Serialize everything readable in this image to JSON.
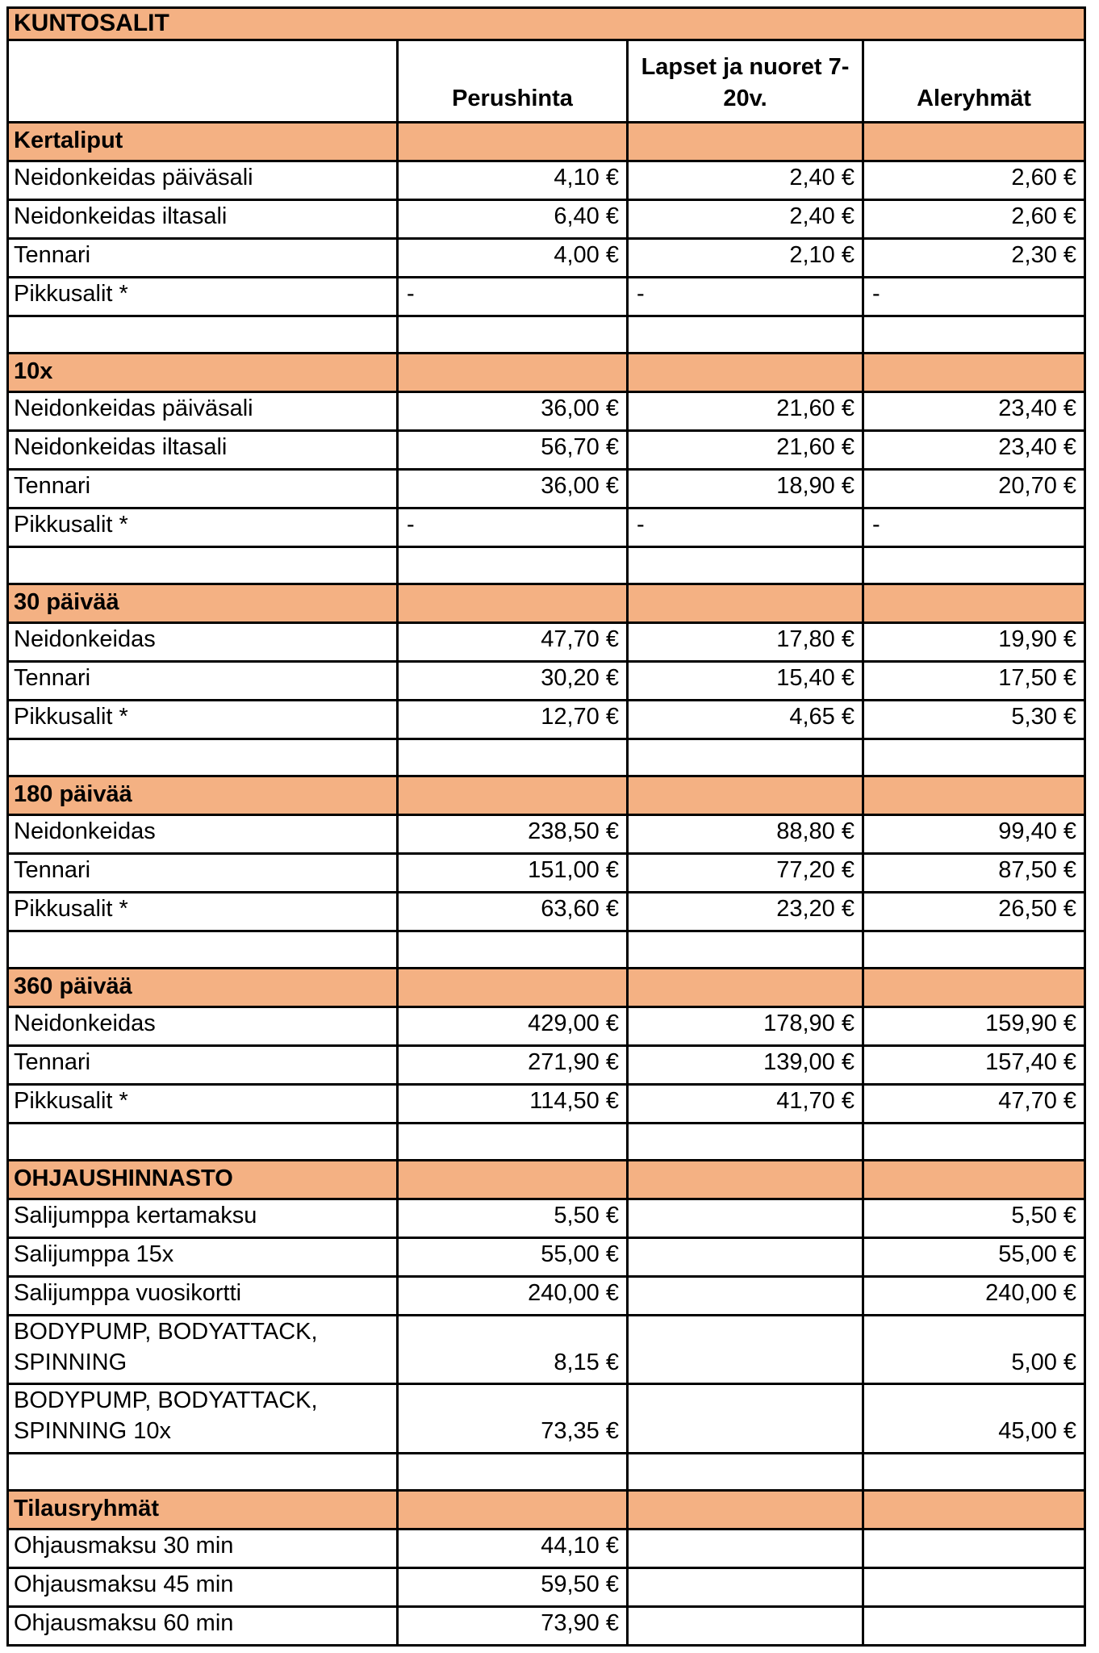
{
  "title": "KUNTOSALIT",
  "columns": [
    "",
    "Perushinta",
    "Lapset ja nuoret 7-20v.",
    "Aleryhmät"
  ],
  "colors": {
    "accent_orange": "#F4B183",
    "grid_border": "#000000",
    "text": "#000000",
    "background": "#FFFFFF"
  },
  "sections": [
    {
      "header": "Kertaliput",
      "blank_after": true,
      "rows": [
        {
          "label": "Neidonkeidas päiväsali",
          "values": [
            "4,10 €",
            "2,40 €",
            "2,60 €"
          ]
        },
        {
          "label": "Neidonkeidas iltasali",
          "values": [
            "6,40 €",
            "2,40 €",
            "2,60 €"
          ]
        },
        {
          "label": "Tennari",
          "values": [
            "4,00 €",
            "2,10 €",
            "2,30 €"
          ]
        },
        {
          "label": "Pikkusalit *",
          "values": [
            "-",
            "-",
            "-"
          ]
        }
      ]
    },
    {
      "header": "10x",
      "blank_after": true,
      "rows": [
        {
          "label": "Neidonkeidas päiväsali",
          "values": [
            "36,00 €",
            "21,60 €",
            "23,40 €"
          ]
        },
        {
          "label": "Neidonkeidas iltasali",
          "values": [
            "56,70 €",
            "21,60 €",
            "23,40 €"
          ]
        },
        {
          "label": "Tennari",
          "values": [
            "36,00 €",
            "18,90 €",
            "20,70 €"
          ]
        },
        {
          "label": "Pikkusalit *",
          "values": [
            "-",
            "-",
            "-"
          ]
        }
      ]
    },
    {
      "header": "30 päivää",
      "blank_after": true,
      "rows": [
        {
          "label": "Neidonkeidas",
          "values": [
            "47,70 €",
            "17,80 €",
            "19,90 €"
          ]
        },
        {
          "label": "Tennari",
          "values": [
            "30,20 €",
            "15,40 €",
            "17,50 €"
          ]
        },
        {
          "label": "Pikkusalit *",
          "values": [
            "12,70 €",
            "4,65 €",
            "5,30 €"
          ]
        }
      ]
    },
    {
      "header": "180 päivää",
      "blank_after": true,
      "rows": [
        {
          "label": "Neidonkeidas",
          "values": [
            "238,50 €",
            "88,80 €",
            "99,40 €"
          ]
        },
        {
          "label": "Tennari",
          "values": [
            "151,00 €",
            "77,20 €",
            "87,50 €"
          ]
        },
        {
          "label": "Pikkusalit *",
          "values": [
            "63,60 €",
            "23,20 €",
            "26,50 €"
          ]
        }
      ]
    },
    {
      "header": "360 päivää",
      "blank_after": true,
      "rows": [
        {
          "label": "Neidonkeidas",
          "values": [
            "429,00 €",
            "178,90 €",
            "159,90 €"
          ]
        },
        {
          "label": "Tennari",
          "values": [
            "271,90 €",
            "139,00 €",
            "157,40 €"
          ]
        },
        {
          "label": "Pikkusalit *",
          "values": [
            "114,50 €",
            "41,70 €",
            "47,70 €"
          ]
        }
      ]
    },
    {
      "header": "OHJAUSHINNASTO",
      "blank_after": true,
      "rows": [
        {
          "label": "Salijumppa kertamaksu",
          "values": [
            "5,50 €",
            "",
            "5,50 €"
          ]
        },
        {
          "label": "Salijumppa 15x",
          "values": [
            "55,00 €",
            "",
            "55,00 €"
          ]
        },
        {
          "label": "Salijumppa vuosikortti",
          "values": [
            "240,00 €",
            "",
            "240,00 €"
          ]
        },
        {
          "label": "BODYPUMP, BODYATTACK, SPINNING",
          "values": [
            "8,15 €",
            "",
            "5,00 €"
          ]
        },
        {
          "label": "BODYPUMP, BODYATTACK, SPINNING 10x",
          "values": [
            "73,35 €",
            "",
            "45,00 €"
          ]
        }
      ]
    },
    {
      "header": "Tilausryhmät",
      "blank_after": false,
      "rows": [
        {
          "label": "Ohjausmaksu 30 min",
          "values": [
            "44,10 €",
            "",
            ""
          ]
        },
        {
          "label": "Ohjausmaksu 45 min",
          "values": [
            "59,50 €",
            "",
            ""
          ]
        },
        {
          "label": "Ohjausmaksu 60 min",
          "values": [
            "73,90 €",
            "",
            ""
          ]
        }
      ]
    }
  ]
}
